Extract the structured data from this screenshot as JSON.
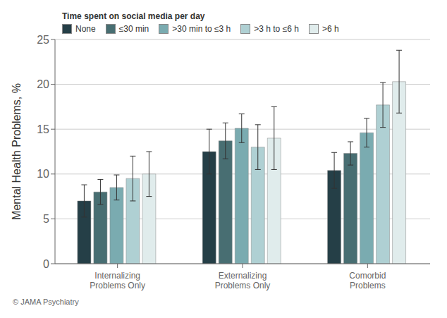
{
  "chart_data": {
    "type": "bar",
    "categories": [
      "Internalizing\nProblems Only",
      "Externalizing\nProblems Only",
      "Comorbid\nProblems"
    ],
    "series": [
      {
        "name": "None",
        "color": "#253f47",
        "values": [
          7.0,
          12.5,
          10.4
        ],
        "errors": [
          1.8,
          2.5,
          2.0
        ]
      },
      {
        "name": "≤30 min",
        "color": "#486e72",
        "values": [
          8.0,
          13.7,
          12.3
        ],
        "errors": [
          1.4,
          2.0,
          1.3
        ]
      },
      {
        "name": ">30 min to ≤3 h",
        "color": "#7aabb0",
        "values": [
          8.5,
          15.1,
          14.6
        ],
        "errors": [
          1.4,
          1.6,
          1.6
        ]
      },
      {
        "name": ">3 h to ≤6 h",
        "color": "#afd0d3",
        "values": [
          9.5,
          13.0,
          17.7
        ],
        "errors": [
          2.5,
          2.5,
          2.5
        ]
      },
      {
        "name": ">6 h",
        "color": "#e0ecec",
        "values": [
          10.0,
          14.0,
          20.3
        ],
        "errors": [
          2.5,
          3.5,
          3.5
        ]
      }
    ],
    "legend_title": "Time spent on social media per day",
    "ylabel": "Mental Health Problems, %",
    "ylim": [
      0,
      25
    ],
    "yticks": [
      0,
      5,
      10,
      15,
      20,
      25
    ],
    "grid": true,
    "legend": "upper left",
    "annotations": [
      "© JAMA Psychiatry"
    ]
  }
}
